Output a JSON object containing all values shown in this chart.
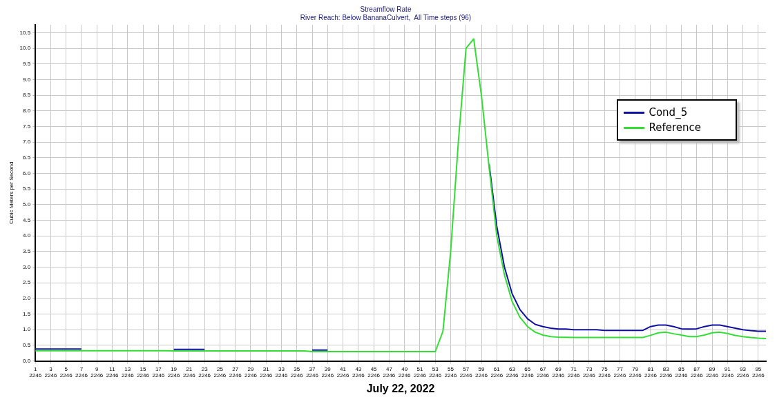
{
  "chart_data": {
    "type": "line",
    "title": "Streamflow Rate",
    "subtitle": "River Reach: Below BananaCulvert,  All Time steps (96)",
    "xlabel": "July 22, 2022",
    "ylabel": "Cubic Meters per Second",
    "categories": [
      "1\n2246",
      null,
      "3\n2246",
      null,
      "5\n2246",
      null,
      "7\n2246",
      null,
      "9\n2246",
      null,
      "11\n2246",
      null,
      "13\n2246",
      null,
      "15\n2246",
      null,
      "17\n2246",
      null,
      "19\n2246",
      null,
      "21\n2246",
      null,
      "23\n2246",
      null,
      "25\n2246",
      null,
      "27\n2246",
      null,
      "29\n2246",
      null,
      "31\n2246",
      null,
      "33\n2246",
      null,
      "35\n2246",
      null,
      "37\n2246",
      null,
      "39\n2246",
      null,
      "41\n2246",
      null,
      "43\n2246",
      null,
      "45\n2246",
      null,
      "47\n2246",
      null,
      "49\n2246",
      null,
      "51\n2246",
      null,
      "53\n2246",
      null,
      "55\n2246",
      null,
      "57\n2246",
      null,
      "59\n2246",
      null,
      "61\n2246",
      null,
      "63\n2246",
      null,
      "65\n2246",
      null,
      "67\n2246",
      null,
      "69\n2246",
      null,
      "71\n2246",
      null,
      "73\n2246",
      null,
      "75\n2246",
      null,
      "77\n2246",
      null,
      "79\n2246",
      null,
      "81\n2246",
      null,
      "83\n2246",
      null,
      "85\n2246",
      null,
      "87\n2246",
      null,
      "89\n2246",
      null,
      "91\n2246",
      null,
      "93\n2246",
      null,
      "95\n2246",
      null
    ],
    "series": [
      {
        "name": "Cond_5",
        "color": "#1010a0",
        "values": [
          0.38,
          0.38,
          0.38,
          0.38,
          0.38,
          0.38,
          0.38,
          null,
          null,
          null,
          null,
          null,
          null,
          null,
          null,
          null,
          null,
          null,
          0.37,
          0.37,
          0.37,
          0.37,
          0.37,
          null,
          null,
          null,
          null,
          null,
          null,
          null,
          null,
          null,
          null,
          null,
          null,
          null,
          0.35,
          0.35,
          0.35,
          null,
          null,
          null,
          null,
          null,
          null,
          null,
          null,
          null,
          null,
          null,
          null,
          null,
          null,
          null,
          null,
          null,
          null,
          null,
          null,
          6.3,
          4.3,
          3.0,
          2.15,
          1.65,
          1.35,
          1.17,
          1.1,
          1.05,
          1.02,
          1.02,
          1.0,
          1.0,
          1.0,
          1.0,
          0.98,
          0.98,
          0.98,
          0.98,
          0.98,
          0.98,
          1.1,
          1.15,
          1.15,
          1.1,
          1.03,
          1.02,
          1.03,
          1.1,
          1.15,
          1.15,
          1.1,
          1.05,
          1.0,
          0.97,
          0.95,
          0.95
        ]
      },
      {
        "name": "Reference",
        "color": "#33dd33",
        "values": [
          0.33,
          0.33,
          0.33,
          0.33,
          0.33,
          0.33,
          0.33,
          0.33,
          0.33,
          0.33,
          0.33,
          0.33,
          0.33,
          0.33,
          0.33,
          0.33,
          0.33,
          0.33,
          0.32,
          0.32,
          0.32,
          0.32,
          0.32,
          0.32,
          0.32,
          0.32,
          0.32,
          0.32,
          0.32,
          0.32,
          0.32,
          0.32,
          0.32,
          0.32,
          0.32,
          0.32,
          0.3,
          0.3,
          0.3,
          0.3,
          0.3,
          0.3,
          0.3,
          0.3,
          0.3,
          0.3,
          0.3,
          0.3,
          0.3,
          0.3,
          0.3,
          0.3,
          0.3,
          0.95,
          3.5,
          7.0,
          10.0,
          10.3,
          8.5,
          6.2,
          4.0,
          2.75,
          1.9,
          1.4,
          1.1,
          0.92,
          0.83,
          0.78,
          0.76,
          0.76,
          0.75,
          0.75,
          0.75,
          0.75,
          0.75,
          0.75,
          0.75,
          0.75,
          0.75,
          0.75,
          0.82,
          0.9,
          0.92,
          0.87,
          0.83,
          0.78,
          0.78,
          0.83,
          0.9,
          0.92,
          0.88,
          0.82,
          0.78,
          0.75,
          0.73,
          0.72
        ]
      }
    ],
    "ylim": [
      0,
      10.75
    ],
    "yticks": [
      {
        "value": 0,
        "label": "0.0"
      },
      0.5,
      {
        "value": 1,
        "label": "1.0"
      },
      1.5,
      {
        "value": 2,
        "label": "2.0"
      },
      2.5,
      {
        "value": 3,
        "label": "3.0"
      },
      3.5,
      {
        "value": 4,
        "label": "4.0"
      },
      4.5,
      {
        "value": 5,
        "label": "5.0"
      },
      5.5,
      {
        "value": 6,
        "label": "6.0"
      },
      6.5,
      {
        "value": 7,
        "label": "7.0"
      },
      7.5,
      {
        "value": 8,
        "label": "8.0"
      },
      8.5,
      {
        "value": 9,
        "label": "9.0"
      },
      9.5,
      {
        "value": 10,
        "label": "10.0"
      },
      10.5
    ],
    "grid": true,
    "legend": "top right",
    "marker": "none",
    "line_style": "solid"
  }
}
